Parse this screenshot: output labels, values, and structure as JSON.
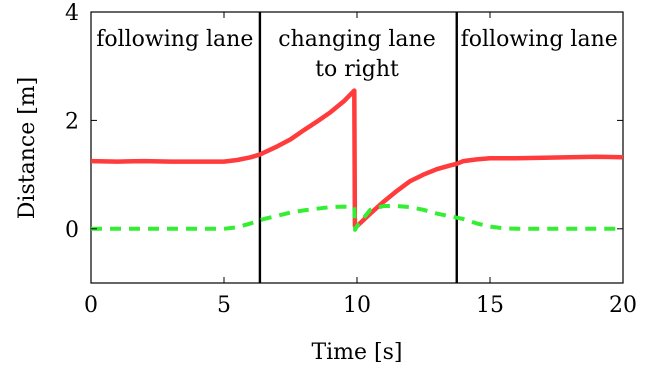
{
  "chart_data": {
    "type": "line",
    "title": "",
    "xlabel": "Time [s]",
    "ylabel": "Distance [m]",
    "xlim": [
      0,
      20
    ],
    "ylim": [
      -1,
      4
    ],
    "xticks": [
      "0",
      "5",
      "10",
      "15",
      "20"
    ],
    "yticks": [
      "0",
      "2",
      "4"
    ],
    "grid": false,
    "legend": "none",
    "vlines": [
      6.35,
      13.75
    ],
    "annotations": [
      {
        "lines": [
          "following lane"
        ],
        "x": 3.15,
        "y": 3.5
      },
      {
        "lines": [
          "changing lane",
          "to right"
        ],
        "x": 10.0,
        "y": 3.5
      },
      {
        "lines": [
          "following lane"
        ],
        "x": 16.85,
        "y": 3.5
      }
    ],
    "series": [
      {
        "color": "#ff3b3b",
        "style": "solid",
        "x": [
          0,
          1,
          2,
          3,
          4,
          5,
          5.5,
          6,
          6.35,
          7,
          7.5,
          8,
          8.5,
          9,
          9.5,
          9.9,
          9.92,
          10,
          10.5,
          11,
          11.5,
          12,
          12.5,
          13,
          13.5,
          13.75,
          14,
          14.5,
          15,
          16,
          17,
          18,
          19,
          20
        ],
        "values": [
          1.25,
          1.24,
          1.25,
          1.24,
          1.24,
          1.24,
          1.27,
          1.32,
          1.37,
          1.52,
          1.65,
          1.82,
          1.98,
          2.15,
          2.35,
          2.55,
          0.05,
          0.05,
          0.28,
          0.5,
          0.7,
          0.88,
          1.0,
          1.1,
          1.17,
          1.2,
          1.25,
          1.28,
          1.3,
          1.3,
          1.31,
          1.32,
          1.33,
          1.32
        ]
      },
      {
        "color": "#33ee33",
        "style": "dashed",
        "x": [
          0,
          1,
          2,
          3,
          4,
          5,
          5.5,
          6,
          6.5,
          7,
          7.5,
          8,
          8.5,
          9,
          9.5,
          9.9,
          9.93,
          10,
          10.5,
          11,
          11.5,
          12,
          12.5,
          13,
          13.5,
          14,
          14.5,
          15,
          15.5,
          16,
          17,
          18,
          19,
          20
        ],
        "values": [
          0.0,
          0.0,
          0.0,
          0.0,
          0.0,
          0.0,
          0.03,
          0.1,
          0.18,
          0.24,
          0.3,
          0.34,
          0.37,
          0.4,
          0.41,
          0.4,
          -0.02,
          0.05,
          0.35,
          0.42,
          0.42,
          0.4,
          0.35,
          0.28,
          0.23,
          0.18,
          0.1,
          0.04,
          0.01,
          0.0,
          0.0,
          0.0,
          0.0,
          0.0
        ]
      }
    ]
  }
}
